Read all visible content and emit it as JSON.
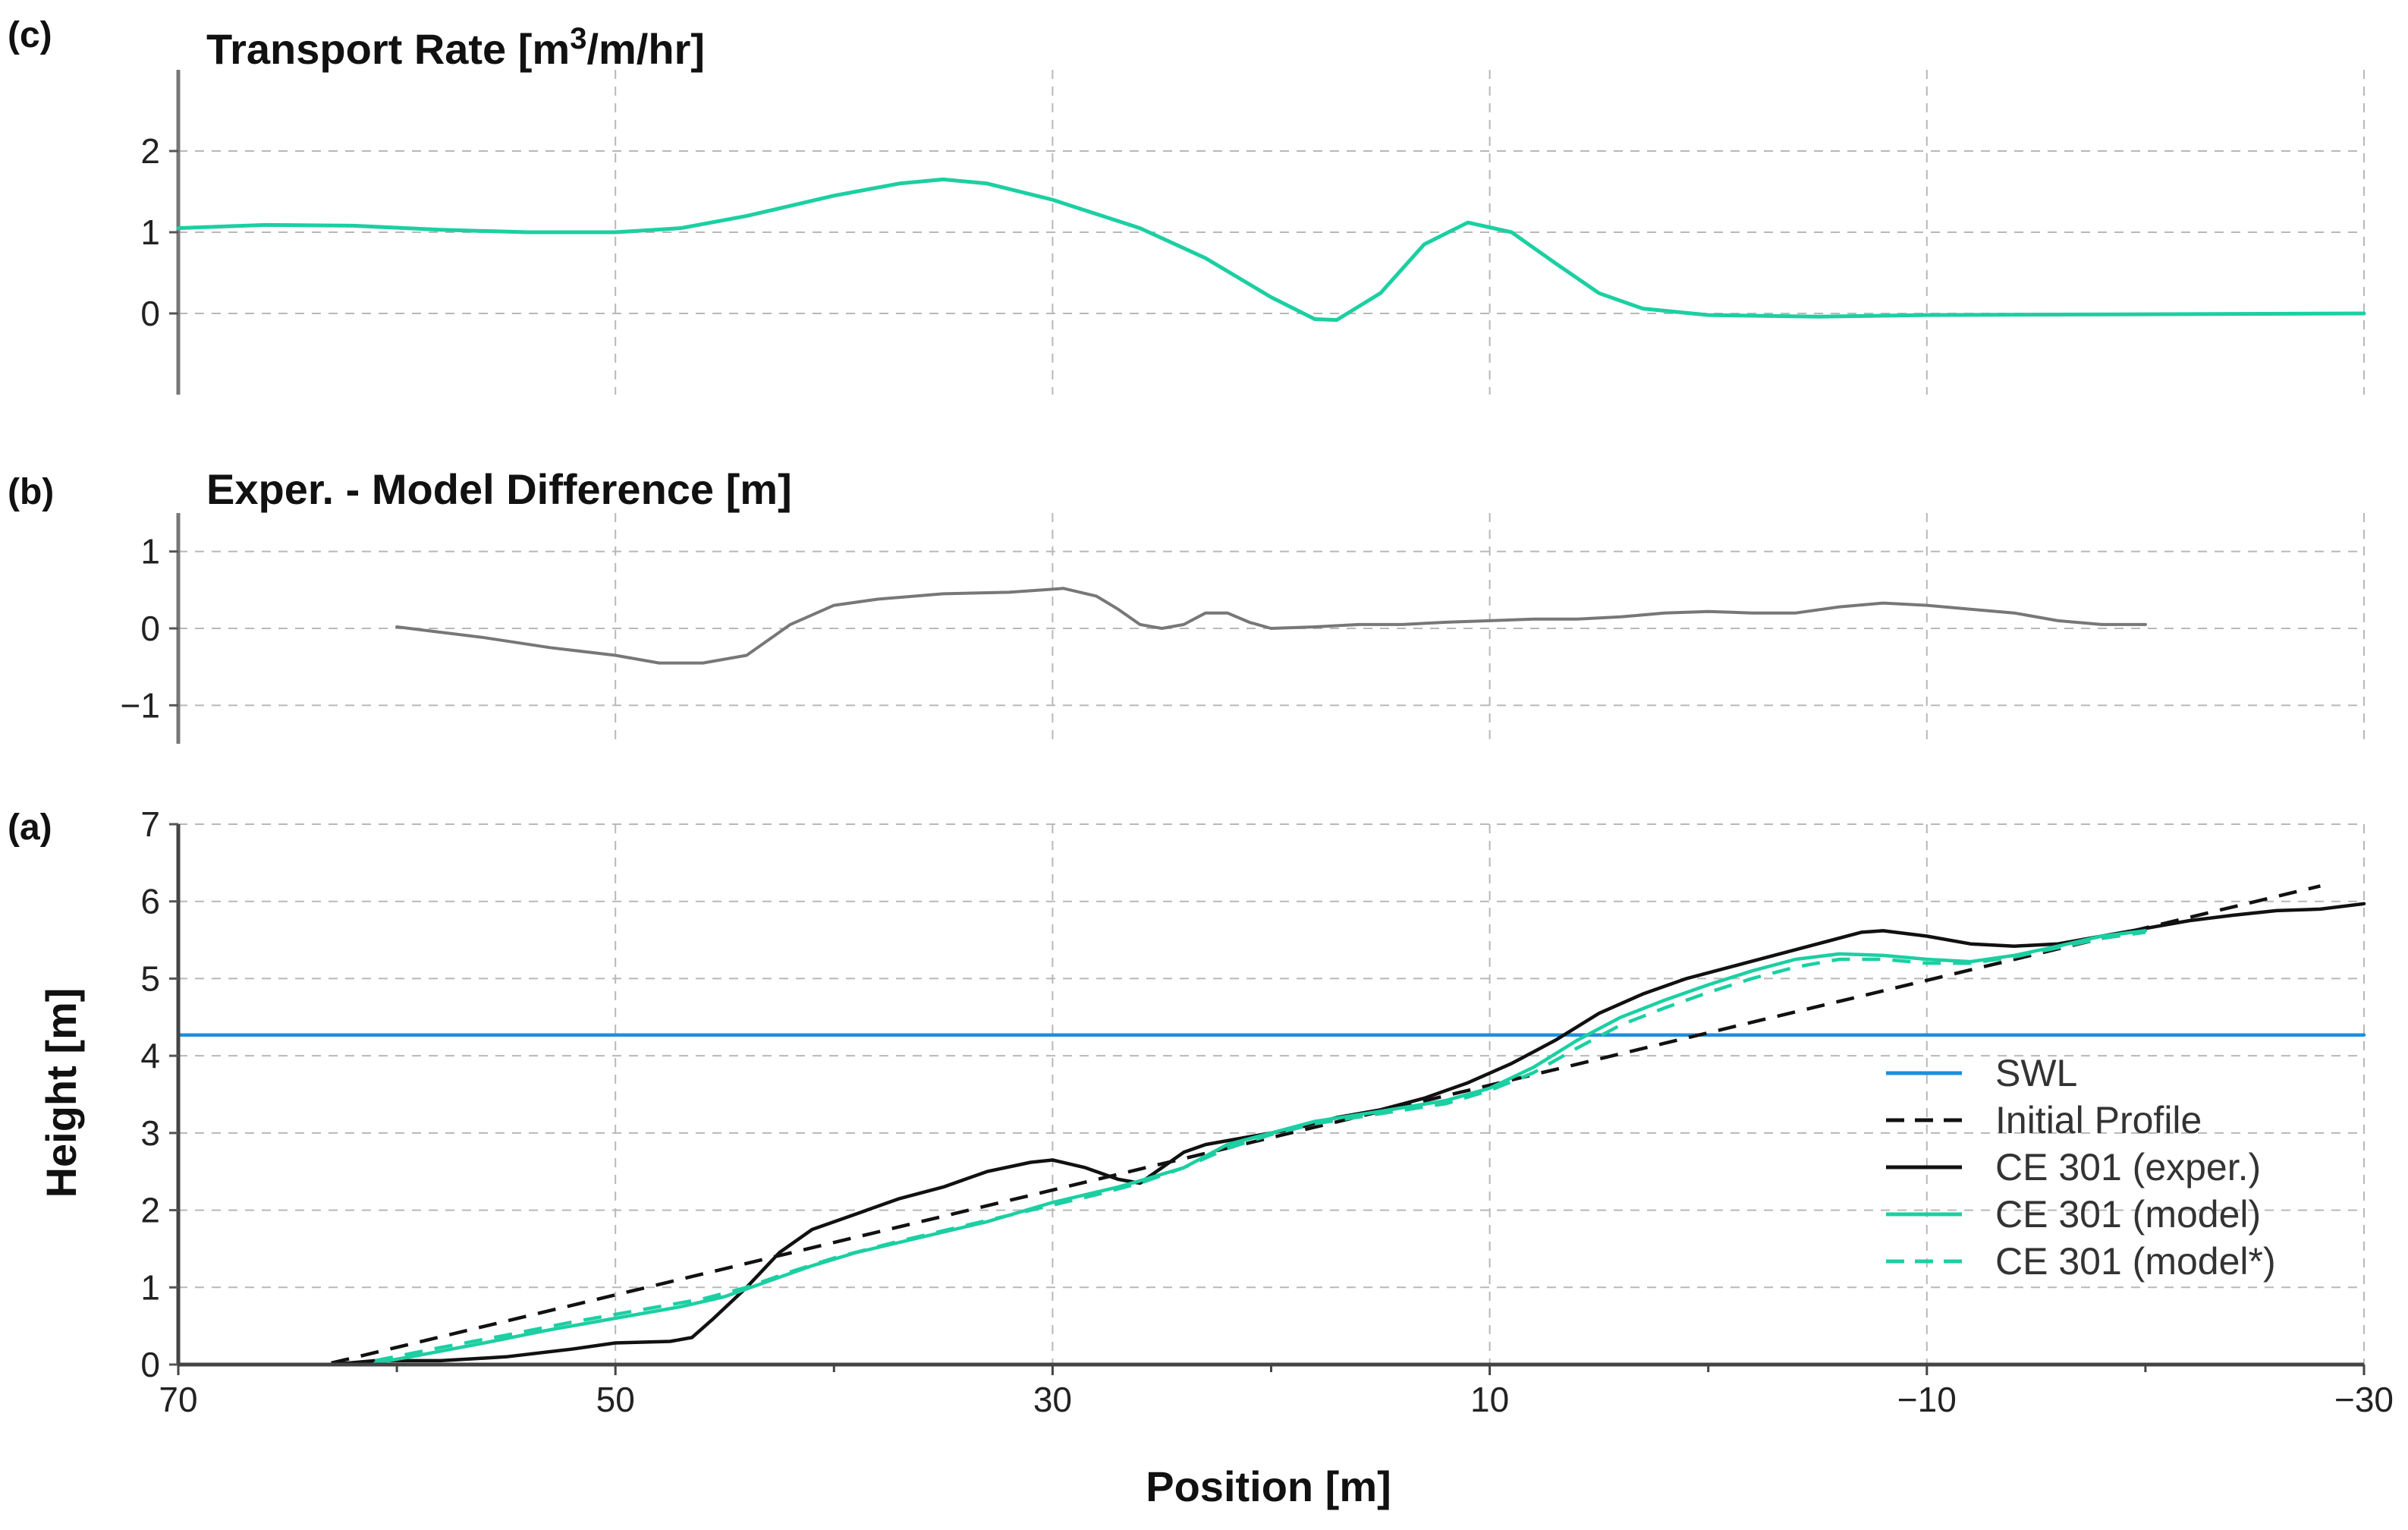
{
  "chart_data": [
    {
      "panel": "(c)",
      "type": "line",
      "title": "Transport Rate [m3/m/hr]",
      "title_main": "Transport Rate [m",
      "title_sup": "3",
      "title_tail": "/m/hr]",
      "xlim": [
        70,
        -30
      ],
      "ylim": [
        -1.0,
        3.0
      ],
      "yticks": [
        0,
        1,
        2
      ],
      "series": [
        {
          "name": "Transport Rate",
          "color": "#1ccfa2",
          "points": [
            [
              70,
              1.05
            ],
            [
              66,
              1.09
            ],
            [
              62,
              1.08
            ],
            [
              58,
              1.03
            ],
            [
              54,
              1.0
            ],
            [
              50,
              1.0
            ],
            [
              47,
              1.05
            ],
            [
              44,
              1.2
            ],
            [
              40,
              1.45
            ],
            [
              37,
              1.6
            ],
            [
              35,
              1.65
            ],
            [
              33,
              1.6
            ],
            [
              30,
              1.4
            ],
            [
              26,
              1.05
            ],
            [
              23,
              0.68
            ],
            [
              20,
              0.2
            ],
            [
              18,
              -0.07
            ],
            [
              17,
              -0.08
            ],
            [
              15,
              0.25
            ],
            [
              13,
              0.85
            ],
            [
              11,
              1.12
            ],
            [
              9,
              1.0
            ],
            [
              7,
              0.62
            ],
            [
              5,
              0.25
            ],
            [
              3,
              0.06
            ],
            [
              0,
              -0.02
            ],
            [
              -5,
              -0.04
            ],
            [
              -10,
              -0.02
            ],
            [
              -20,
              -0.01
            ],
            [
              -30,
              0.0
            ]
          ]
        }
      ]
    },
    {
      "panel": "(b)",
      "type": "line",
      "title": "Exper. - Model Difference [m]",
      "xlim": [
        70,
        -30
      ],
      "ylim": [
        -1.5,
        1.5
      ],
      "yticks": [
        -1,
        0,
        1
      ],
      "series": [
        {
          "name": "Exper. - Model Difference",
          "color": "#777777",
          "points": [
            [
              60,
              0.02
            ],
            [
              56,
              -0.12
            ],
            [
              53,
              -0.25
            ],
            [
              50,
              -0.35
            ],
            [
              48,
              -0.45
            ],
            [
              46,
              -0.45
            ],
            [
              44,
              -0.35
            ],
            [
              42,
              0.05
            ],
            [
              40,
              0.3
            ],
            [
              38,
              0.38
            ],
            [
              35,
              0.45
            ],
            [
              32,
              0.47
            ],
            [
              29.5,
              0.52
            ],
            [
              28,
              0.42
            ],
            [
              27,
              0.25
            ],
            [
              26,
              0.05
            ],
            [
              25,
              0.0
            ],
            [
              24,
              0.05
            ],
            [
              23,
              0.2
            ],
            [
              22,
              0.2
            ],
            [
              21,
              0.08
            ],
            [
              20,
              0.0
            ],
            [
              18,
              0.02
            ],
            [
              16,
              0.05
            ],
            [
              14,
              0.05
            ],
            [
              12,
              0.08
            ],
            [
              10,
              0.1
            ],
            [
              8,
              0.12
            ],
            [
              6,
              0.12
            ],
            [
              4,
              0.15
            ],
            [
              2,
              0.2
            ],
            [
              0,
              0.22
            ],
            [
              -2,
              0.2
            ],
            [
              -4,
              0.2
            ],
            [
              -6,
              0.28
            ],
            [
              -8,
              0.33
            ],
            [
              -10,
              0.3
            ],
            [
              -12,
              0.25
            ],
            [
              -14,
              0.2
            ],
            [
              -16,
              0.1
            ],
            [
              -18,
              0.05
            ],
            [
              -20,
              0.05
            ]
          ]
        }
      ]
    },
    {
      "panel": "(a)",
      "type": "line",
      "title": "",
      "xlabel": "Position [m]",
      "ylabel": "Height [m]",
      "xlim": [
        70,
        -30
      ],
      "ylim": [
        0,
        7
      ],
      "xticks": [
        70,
        50,
        30,
        10,
        -10,
        -30
      ],
      "yticks": [
        0,
        1,
        2,
        3,
        4,
        5,
        6,
        7
      ],
      "series": [
        {
          "name": "SWL",
          "style": "solid",
          "color": "#1a8fe0",
          "points": [
            [
              70,
              4.27
            ],
            [
              -30,
              4.27
            ]
          ]
        },
        {
          "name": "Initial Profile",
          "style": "dashed",
          "color": "#111111",
          "points": [
            [
              63,
              0.02
            ],
            [
              -28,
              6.2
            ]
          ]
        },
        {
          "name": "CE 301 (exper.)",
          "style": "solid",
          "color": "#111111",
          "points": [
            [
              63,
              0.0
            ],
            [
              61,
              0.05
            ],
            [
              58,
              0.05
            ],
            [
              55,
              0.1
            ],
            [
              52,
              0.2
            ],
            [
              50,
              0.28
            ],
            [
              47.5,
              0.3
            ],
            [
              46.5,
              0.35
            ],
            [
              45.5,
              0.6
            ],
            [
              44,
              1.0
            ],
            [
              42.5,
              1.45
            ],
            [
              41,
              1.75
            ],
            [
              39,
              1.95
            ],
            [
              37,
              2.15
            ],
            [
              35,
              2.3
            ],
            [
              33,
              2.5
            ],
            [
              31,
              2.62
            ],
            [
              30,
              2.65
            ],
            [
              28.5,
              2.55
            ],
            [
              27,
              2.4
            ],
            [
              26,
              2.35
            ],
            [
              25,
              2.55
            ],
            [
              24,
              2.75
            ],
            [
              23,
              2.85
            ],
            [
              21,
              2.95
            ],
            [
              19,
              3.05
            ],
            [
              17,
              3.2
            ],
            [
              15,
              3.3
            ],
            [
              13,
              3.45
            ],
            [
              11,
              3.65
            ],
            [
              9,
              3.9
            ],
            [
              7,
              4.2
            ],
            [
              5,
              4.55
            ],
            [
              3,
              4.8
            ],
            [
              1,
              5.0
            ],
            [
              -1,
              5.15
            ],
            [
              -3,
              5.3
            ],
            [
              -5,
              5.45
            ],
            [
              -7,
              5.6
            ],
            [
              -8,
              5.62
            ],
            [
              -10,
              5.55
            ],
            [
              -12,
              5.45
            ],
            [
              -14,
              5.42
            ],
            [
              -16,
              5.45
            ],
            [
              -18,
              5.55
            ],
            [
              -20,
              5.65
            ],
            [
              -22,
              5.75
            ],
            [
              -24,
              5.82
            ],
            [
              -26,
              5.88
            ],
            [
              -28,
              5.9
            ],
            [
              -30,
              5.97
            ]
          ]
        },
        {
          "name": "CE 301 (model)",
          "style": "solid",
          "color": "#1ccfa2",
          "points": [
            [
              61,
              0.02
            ],
            [
              59,
              0.12
            ],
            [
              56,
              0.28
            ],
            [
              53,
              0.45
            ],
            [
              50,
              0.6
            ],
            [
              47,
              0.75
            ],
            [
              45,
              0.88
            ],
            [
              43,
              1.08
            ],
            [
              41,
              1.28
            ],
            [
              39,
              1.45
            ],
            [
              36,
              1.65
            ],
            [
              33,
              1.85
            ],
            [
              30,
              2.1
            ],
            [
              27,
              2.3
            ],
            [
              26,
              2.38
            ],
            [
              24,
              2.55
            ],
            [
              22,
              2.85
            ],
            [
              20,
              3.0
            ],
            [
              18,
              3.15
            ],
            [
              15,
              3.28
            ],
            [
              12,
              3.42
            ],
            [
              10,
              3.58
            ],
            [
              8,
              3.85
            ],
            [
              6,
              4.2
            ],
            [
              4,
              4.5
            ],
            [
              2,
              4.72
            ],
            [
              0,
              4.92
            ],
            [
              -2,
              5.1
            ],
            [
              -4,
              5.25
            ],
            [
              -6,
              5.32
            ],
            [
              -8,
              5.3
            ],
            [
              -10,
              5.25
            ],
            [
              -12,
              5.22
            ],
            [
              -14,
              5.3
            ],
            [
              -16,
              5.42
            ],
            [
              -18,
              5.55
            ],
            [
              -20,
              5.62
            ]
          ]
        },
        {
          "name": "CE 301 (model*)",
          "style": "dashed",
          "color": "#1ccfa2",
          "points": [
            [
              61,
              0.05
            ],
            [
              58,
              0.22
            ],
            [
              55,
              0.38
            ],
            [
              52,
              0.55
            ],
            [
              49,
              0.7
            ],
            [
              46,
              0.85
            ],
            [
              44,
              1.0
            ],
            [
              42,
              1.2
            ],
            [
              40,
              1.38
            ],
            [
              37,
              1.6
            ],
            [
              34,
              1.8
            ],
            [
              31,
              2.0
            ],
            [
              28,
              2.2
            ],
            [
              26,
              2.35
            ],
            [
              24,
              2.55
            ],
            [
              22,
              2.8
            ],
            [
              20,
              2.98
            ],
            [
              18,
              3.12
            ],
            [
              15,
              3.25
            ],
            [
              12,
              3.38
            ],
            [
              10,
              3.55
            ],
            [
              8,
              3.78
            ],
            [
              6,
              4.1
            ],
            [
              4,
              4.4
            ],
            [
              2,
              4.62
            ],
            [
              0,
              4.82
            ],
            [
              -2,
              5.0
            ],
            [
              -4,
              5.15
            ],
            [
              -6,
              5.25
            ],
            [
              -8,
              5.25
            ],
            [
              -10,
              5.2
            ],
            [
              -12,
              5.2
            ],
            [
              -14,
              5.28
            ],
            [
              -16,
              5.4
            ],
            [
              -18,
              5.52
            ],
            [
              -20,
              5.6
            ]
          ]
        }
      ],
      "legend": [
        "SWL",
        "Initial Profile",
        "CE 301 (exper.)",
        "CE 301 (model)",
        "CE 301 (model*)"
      ]
    }
  ]
}
